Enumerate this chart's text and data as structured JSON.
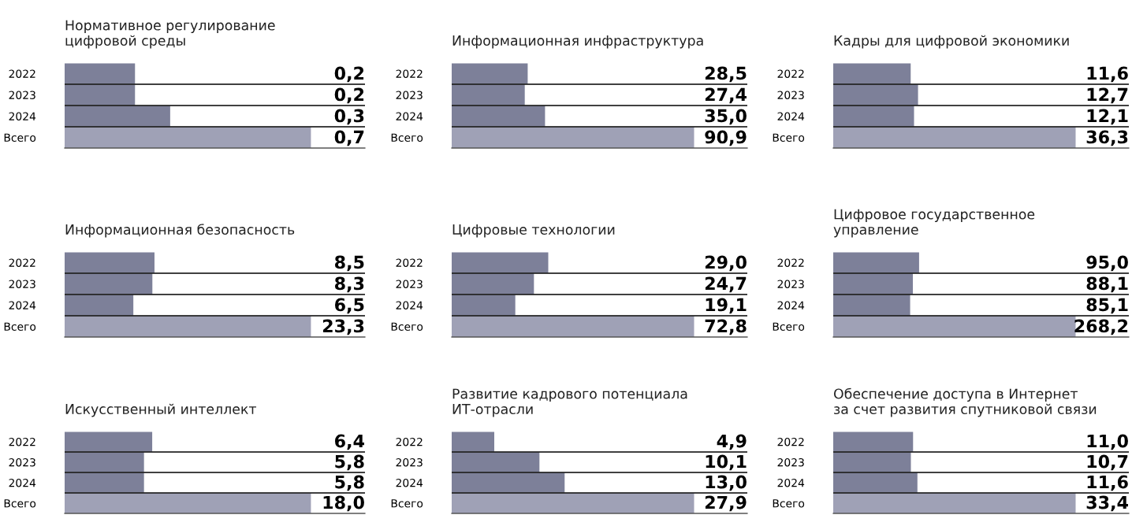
{
  "chart_data": [
    {
      "type": "bar",
      "orientation": "horizontal",
      "title": "Нормативное регулирование\nцифровой среды",
      "categories": [
        "2022",
        "2023",
        "2024",
        "Всего"
      ],
      "values": [
        0.2,
        0.2,
        0.3,
        0.7
      ],
      "value_labels": [
        "0,2",
        "0,2",
        "0,3",
        "0,7"
      ],
      "colors": [
        "#7d8099",
        "#7d8099",
        "#7d8099",
        "#9fa1b6"
      ]
    },
    {
      "type": "bar",
      "orientation": "horizontal",
      "title": "Информационная инфраструктура",
      "categories": [
        "2022",
        "2023",
        "2024",
        "Всего"
      ],
      "values": [
        28.5,
        27.4,
        35.0,
        90.9
      ],
      "value_labels": [
        "28,5",
        "27,4",
        "35,0",
        "90,9"
      ],
      "colors": [
        "#7d8099",
        "#7d8099",
        "#7d8099",
        "#9fa1b6"
      ]
    },
    {
      "type": "bar",
      "orientation": "horizontal",
      "title": "Кадры для цифровой экономики",
      "categories": [
        "2022",
        "2023",
        "2024",
        "Всего"
      ],
      "values": [
        11.6,
        12.7,
        12.1,
        36.3
      ],
      "value_labels": [
        "11,6",
        "12,7",
        "12,1",
        "36,3"
      ],
      "colors": [
        "#7d8099",
        "#7d8099",
        "#7d8099",
        "#9fa1b6"
      ]
    },
    {
      "type": "bar",
      "orientation": "horizontal",
      "title": "Информационная безопасность",
      "categories": [
        "2022",
        "2023",
        "2024",
        "Всего"
      ],
      "values": [
        8.5,
        8.3,
        6.5,
        23.3
      ],
      "value_labels": [
        "8,5",
        "8,3",
        "6,5",
        "23,3"
      ],
      "colors": [
        "#7d8099",
        "#7d8099",
        "#7d8099",
        "#9fa1b6"
      ]
    },
    {
      "type": "bar",
      "orientation": "horizontal",
      "title": "Цифровые технологии",
      "categories": [
        "2022",
        "2023",
        "2024",
        "Всего"
      ],
      "values": [
        29.0,
        24.7,
        19.1,
        72.8
      ],
      "value_labels": [
        "29,0",
        "24,7",
        "19,1",
        "72,8"
      ],
      "colors": [
        "#7d8099",
        "#7d8099",
        "#7d8099",
        "#9fa1b6"
      ]
    },
    {
      "type": "bar",
      "orientation": "horizontal",
      "title": "Цифровое государственное\nуправление",
      "categories": [
        "2022",
        "2023",
        "2024",
        "Всего"
      ],
      "values": [
        95.0,
        88.1,
        85.1,
        268.2
      ],
      "value_labels": [
        "95,0",
        "88,1",
        "85,1",
        "268,2"
      ],
      "colors": [
        "#7d8099",
        "#7d8099",
        "#7d8099",
        "#9fa1b6"
      ]
    },
    {
      "type": "bar",
      "orientation": "horizontal",
      "title": "Искусственный интеллект",
      "categories": [
        "2022",
        "2023",
        "2024",
        "Всего"
      ],
      "values": [
        6.4,
        5.8,
        5.8,
        18.0
      ],
      "value_labels": [
        "6,4",
        "5,8",
        "5,8",
        "18,0"
      ],
      "colors": [
        "#7d8099",
        "#7d8099",
        "#7d8099",
        "#9fa1b6"
      ]
    },
    {
      "type": "bar",
      "orientation": "horizontal",
      "title": "Развитие кадрового потенциала\nИТ-отрасли",
      "categories": [
        "2022",
        "2023",
        "2024",
        "Всего"
      ],
      "values": [
        4.9,
        10.1,
        13.0,
        27.9
      ],
      "value_labels": [
        "4,9",
        "10,1",
        "13,0",
        "27,9"
      ],
      "colors": [
        "#7d8099",
        "#7d8099",
        "#7d8099",
        "#9fa1b6"
      ]
    },
    {
      "type": "bar",
      "orientation": "horizontal",
      "title": "Обеспечение доступа в Интернет\nза счет развития спутниковой связи",
      "categories": [
        "2022",
        "2023",
        "2024",
        "Всего"
      ],
      "values": [
        11.0,
        10.7,
        11.6,
        33.4
      ],
      "value_labels": [
        "11,0",
        "10,7",
        "11,6",
        "33,4"
      ],
      "colors": [
        "#7d8099",
        "#7d8099",
        "#7d8099",
        "#9fa1b6"
      ]
    }
  ]
}
